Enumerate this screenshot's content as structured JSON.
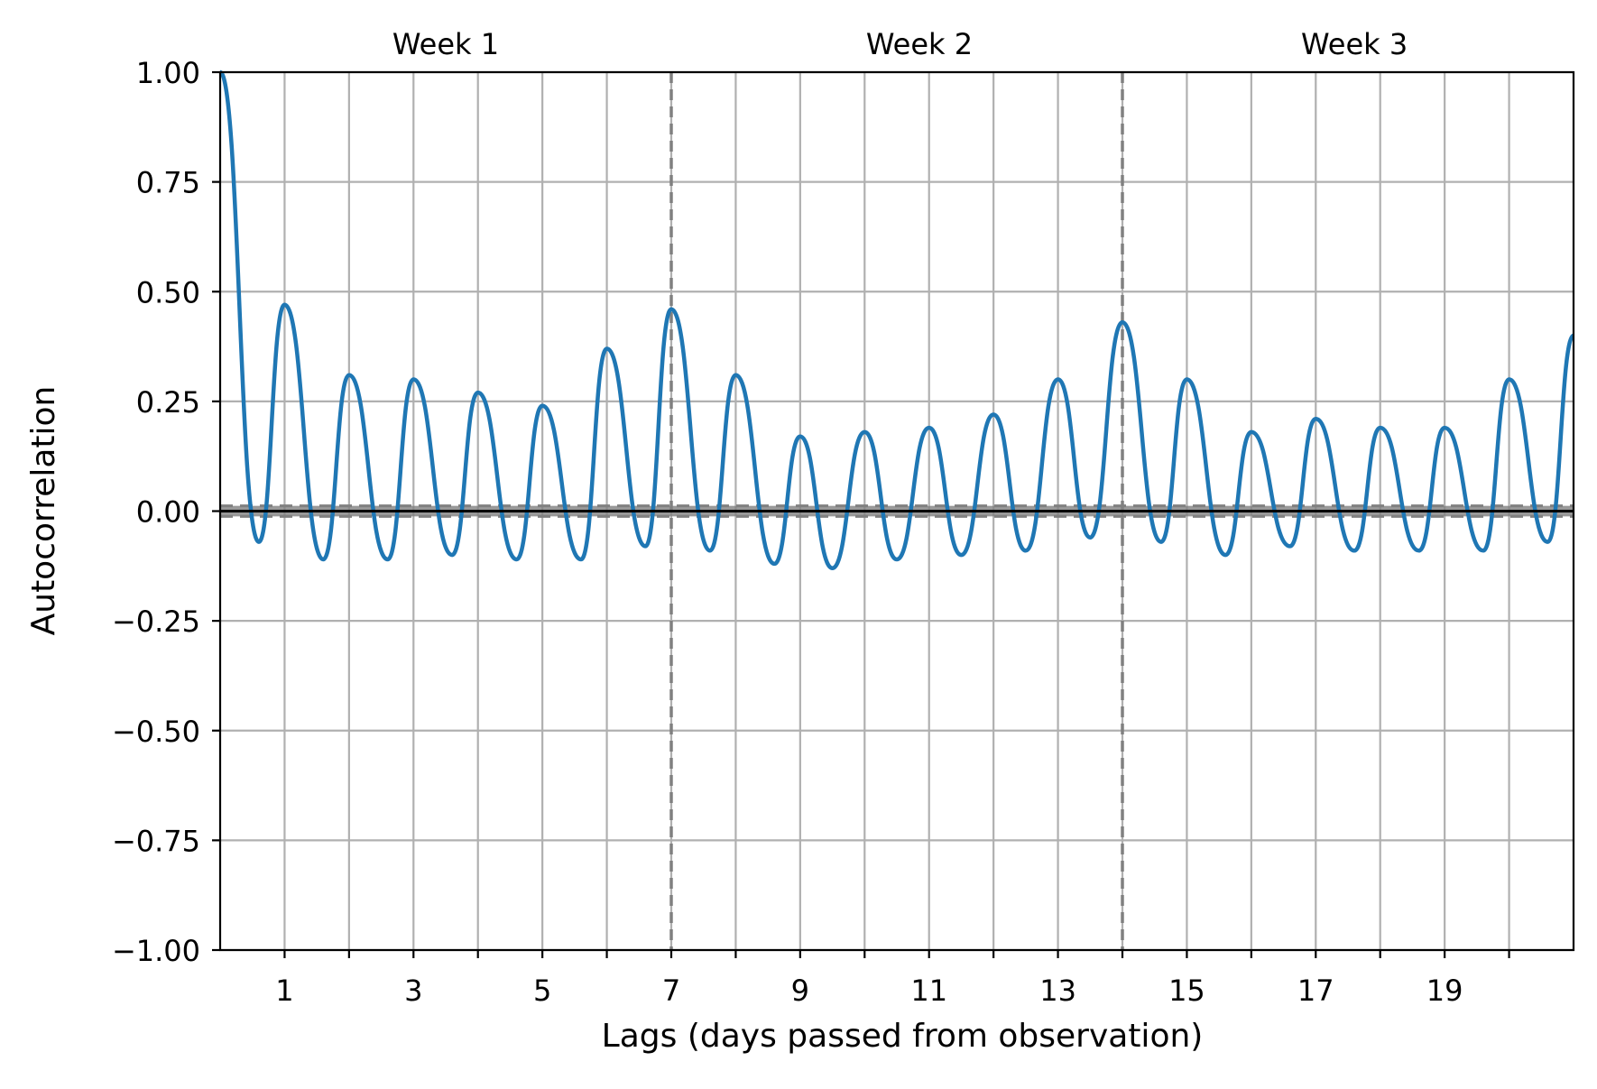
{
  "chart_data": {
    "type": "line",
    "title": "",
    "xlabel": "Lags (days passed from observation)",
    "ylabel": "Autocorrelation",
    "xlim": [
      0,
      21
    ],
    "ylim": [
      -1.0,
      1.0
    ],
    "grid": true,
    "x_ticks": [
      1,
      3,
      5,
      7,
      9,
      11,
      13,
      15,
      17,
      19
    ],
    "x_minor_ticks": [
      2,
      4,
      6,
      8,
      10,
      12,
      14,
      16,
      18,
      20
    ],
    "x_tick_labels": [
      "1",
      "3",
      "5",
      "7",
      "9",
      "11",
      "13",
      "15",
      "17",
      "19"
    ],
    "y_ticks": [
      -1.0,
      -0.75,
      -0.5,
      -0.25,
      0.0,
      0.25,
      0.5,
      0.75,
      1.0
    ],
    "y_tick_labels": [
      "−1.00",
      "−0.75",
      "−0.50",
      "−0.25",
      "0.00",
      "0.25",
      "0.50",
      "0.75",
      "1.00"
    ],
    "week_labels": [
      {
        "text": "Week 1",
        "x": 3.5
      },
      {
        "text": "Week 2",
        "x": 10.85
      },
      {
        "text": "Week 3",
        "x": 17.6
      }
    ],
    "week_boundaries": [
      7,
      14
    ],
    "confidence_band": [
      -0.012,
      0.012
    ],
    "zero_line": 0.0,
    "colors": {
      "series": "#1f77b4",
      "grid": "#b0b0b0",
      "boundary": "#808080",
      "band": "#808080",
      "axis": "#000000"
    },
    "series": [
      {
        "peaks": [
          [
            1,
            0.47
          ],
          [
            2,
            0.31
          ],
          [
            3,
            0.3
          ],
          [
            4,
            0.27
          ],
          [
            5,
            0.24
          ],
          [
            6,
            0.37
          ],
          [
            7,
            0.46
          ],
          [
            8,
            0.31
          ],
          [
            9,
            0.17
          ],
          [
            10,
            0.18
          ],
          [
            11,
            0.19
          ],
          [
            12,
            0.22
          ],
          [
            13,
            0.3
          ],
          [
            14,
            0.43
          ],
          [
            15,
            0.3
          ],
          [
            16,
            0.18
          ],
          [
            17,
            0.21
          ],
          [
            18,
            0.19
          ],
          [
            19,
            0.19
          ],
          [
            20,
            0.3
          ],
          [
            21,
            0.4
          ]
        ],
        "troughs": [
          [
            0.6,
            -0.07
          ],
          [
            1.6,
            -0.11
          ],
          [
            2.6,
            -0.11
          ],
          [
            3.6,
            -0.1
          ],
          [
            4.6,
            -0.11
          ],
          [
            5.6,
            -0.11
          ],
          [
            6.6,
            -0.08
          ],
          [
            7.6,
            -0.09
          ],
          [
            8.6,
            -0.12
          ],
          [
            9.5,
            -0.13
          ],
          [
            10.5,
            -0.11
          ],
          [
            11.5,
            -0.1
          ],
          [
            12.5,
            -0.09
          ],
          [
            13.5,
            -0.06
          ],
          [
            14.6,
            -0.07
          ],
          [
            15.6,
            -0.1
          ],
          [
            16.6,
            -0.08
          ],
          [
            17.6,
            -0.09
          ],
          [
            18.6,
            -0.09
          ],
          [
            19.6,
            -0.09
          ],
          [
            20.6,
            -0.07
          ]
        ],
        "start": [
          0,
          1.0
        ]
      }
    ]
  }
}
